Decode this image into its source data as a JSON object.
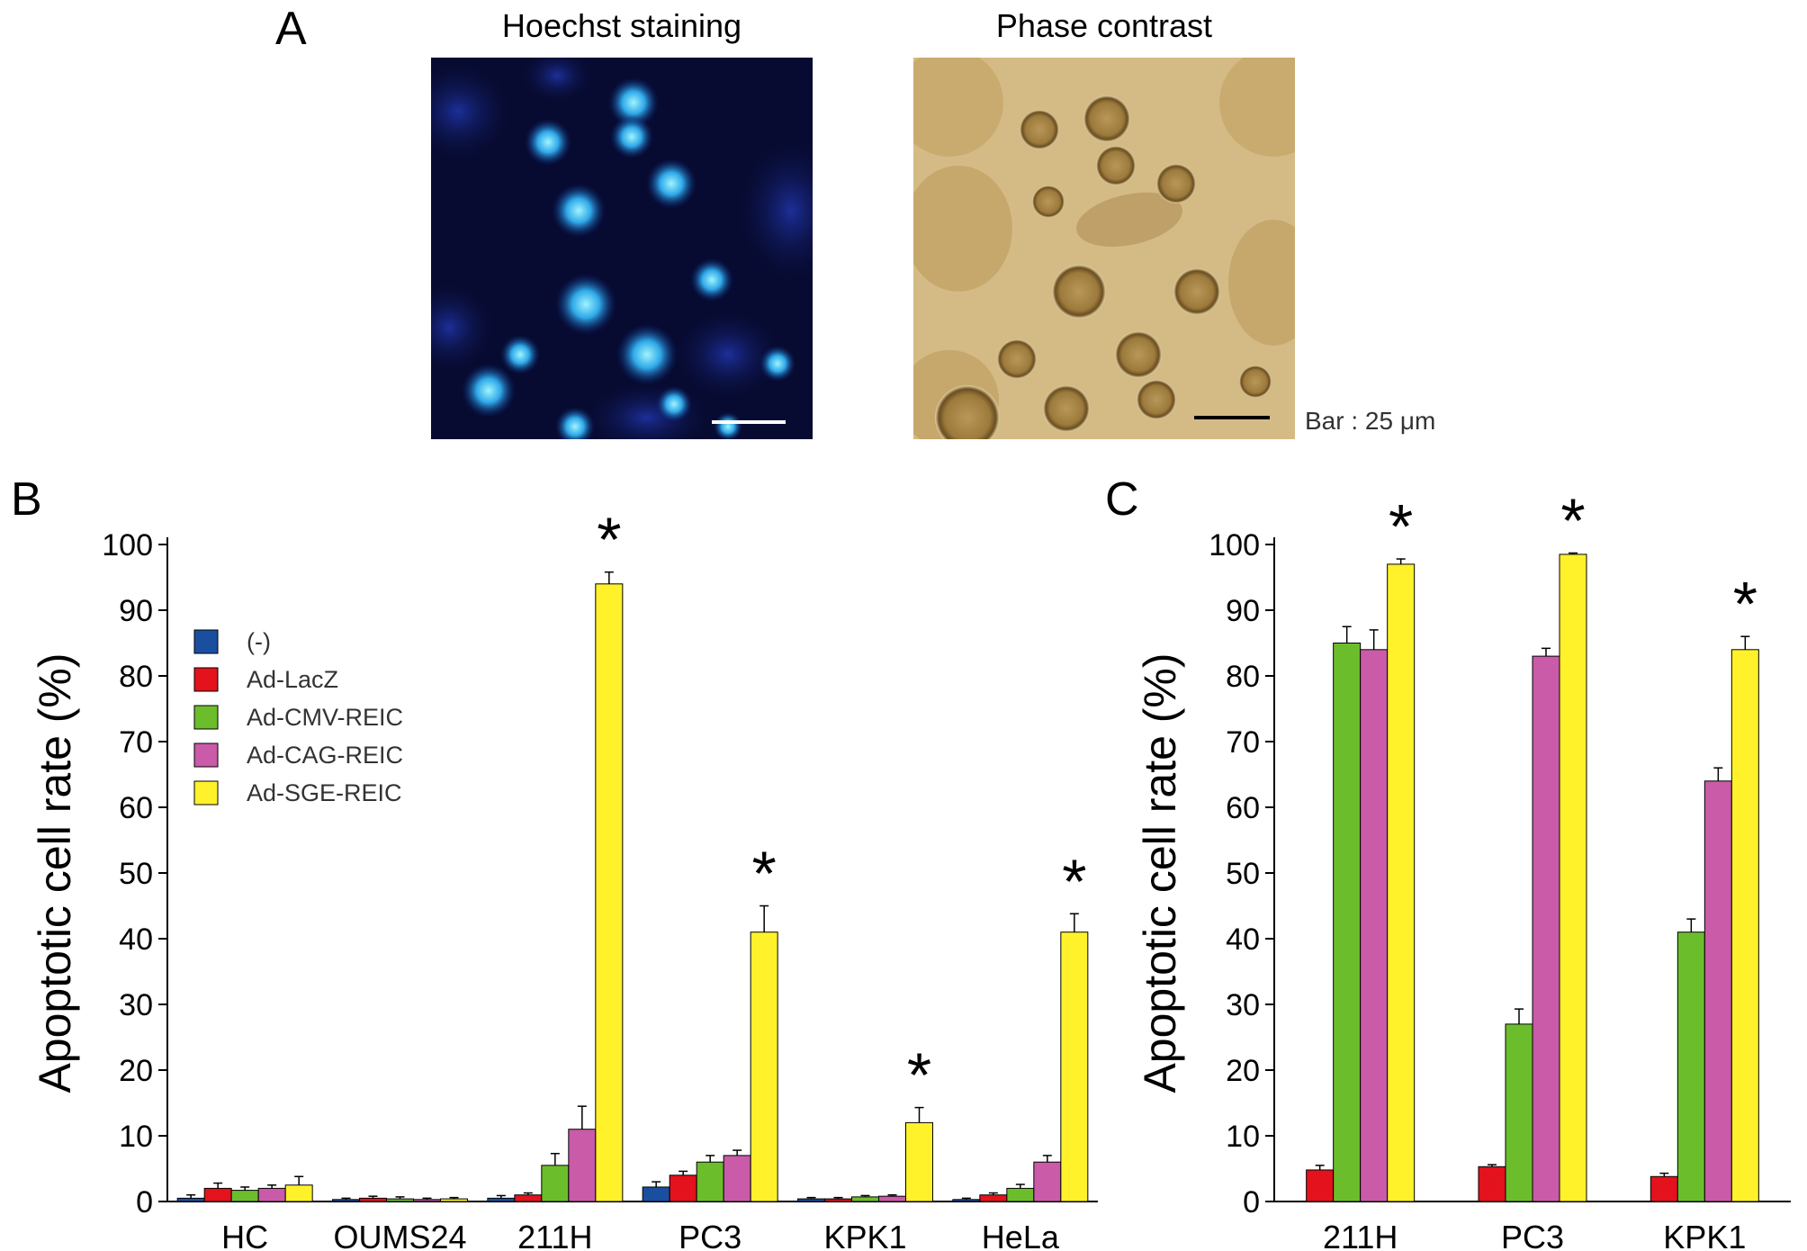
{
  "panel_a": {
    "letter": "A",
    "hoechst_title": "Hoechst staining",
    "phase_title": "Phase contrast",
    "bar_label": "Bar : 25 μm"
  },
  "chart_data": [
    {
      "panel": "B",
      "type": "bar",
      "ylabel": "Apoptotic cell rate (%)",
      "ylim": [
        0,
        100
      ],
      "yticks": [
        0,
        10,
        20,
        30,
        40,
        50,
        60,
        70,
        80,
        90,
        100
      ],
      "categories": [
        "HC",
        "OUMS24",
        "211H",
        "PC3",
        "KPK1",
        "HeLa"
      ],
      "series": [
        {
          "name": "(-)",
          "color": "#1a4fa0",
          "values": [
            0.5,
            0.3,
            0.5,
            2.2,
            0.4,
            0.3
          ],
          "errors": [
            0.5,
            0.2,
            0.4,
            0.8,
            0.2,
            0.2
          ]
        },
        {
          "name": "Ad-LacZ",
          "color": "#e3121c",
          "values": [
            2.0,
            0.5,
            1.0,
            4.0,
            0.4,
            1.0
          ],
          "errors": [
            0.8,
            0.3,
            0.3,
            0.6,
            0.2,
            0.3
          ]
        },
        {
          "name": "Ad-CMV-REIC",
          "color": "#6cbd2c",
          "values": [
            1.7,
            0.4,
            5.5,
            6.0,
            0.7,
            2.0
          ],
          "errors": [
            0.5,
            0.3,
            1.8,
            1.0,
            0.2,
            0.6
          ]
        },
        {
          "name": "Ad-CAG-REIC",
          "color": "#c95ba8",
          "values": [
            2.0,
            0.3,
            11.0,
            7.0,
            0.8,
            6.0
          ],
          "errors": [
            0.5,
            0.2,
            3.5,
            0.8,
            0.2,
            1.0
          ]
        },
        {
          "name": "Ad-SGE-REIC",
          "color": "#fff12a",
          "values": [
            2.5,
            0.4,
            94.0,
            41.0,
            12.0,
            41.0
          ],
          "errors": [
            1.3,
            0.2,
            1.8,
            4.0,
            2.3,
            2.8
          ]
        }
      ],
      "significance": [
        "",
        "",
        "*",
        "*",
        "*",
        "*"
      ],
      "legend_position": "upper-left"
    },
    {
      "panel": "C",
      "type": "bar",
      "ylabel": "Apoptotic cell rate (%)",
      "ylim": [
        0,
        100
      ],
      "yticks": [
        0,
        10,
        20,
        30,
        40,
        50,
        60,
        70,
        80,
        90,
        100
      ],
      "categories": [
        "211H",
        "PC3",
        "KPK1"
      ],
      "series": [
        {
          "name": "Ad-LacZ",
          "color": "#e3121c",
          "values": [
            4.8,
            5.3,
            3.8
          ],
          "errors": [
            0.7,
            0.3,
            0.5
          ]
        },
        {
          "name": "Ad-CMV-REIC",
          "color": "#6cbd2c",
          "values": [
            85.0,
            27.0,
            41.0
          ],
          "errors": [
            2.5,
            2.3,
            2.0
          ]
        },
        {
          "name": "Ad-CAG-REIC",
          "color": "#c95ba8",
          "values": [
            84.0,
            83.0,
            64.0
          ],
          "errors": [
            3.0,
            1.2,
            2.0
          ]
        },
        {
          "name": "Ad-SGE-REIC",
          "color": "#fff12a",
          "values": [
            97.0,
            98.5,
            84.0
          ],
          "errors": [
            0.8,
            0.2,
            2.0
          ]
        }
      ],
      "significance": [
        "*",
        "*",
        "*"
      ]
    }
  ]
}
